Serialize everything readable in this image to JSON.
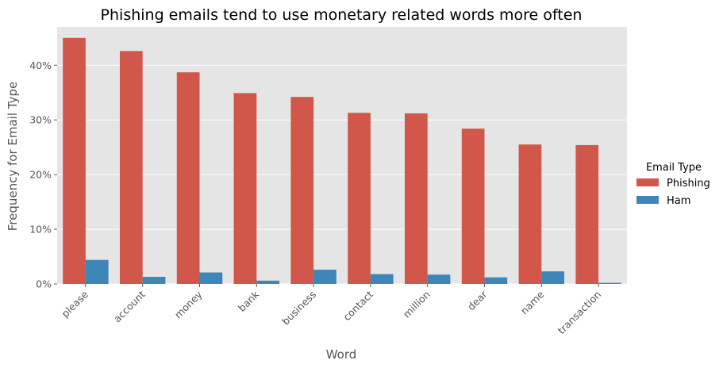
{
  "chart_data": {
    "type": "bar",
    "title": "Phishing emails tend to use monetary related words more often",
    "xlabel": "Word",
    "ylabel": "Frequency for Email Type",
    "categories": [
      "please",
      "account",
      "money",
      "bank",
      "business",
      "contact",
      "million",
      "dear",
      "name",
      "transaction"
    ],
    "series": [
      {
        "name": "Phishing",
        "color": "#d0574a",
        "values": [
          45.0,
          42.6,
          38.7,
          34.9,
          34.2,
          31.3,
          31.2,
          28.4,
          25.5,
          25.4
        ]
      },
      {
        "name": "Ham",
        "color": "#3f86b8",
        "values": [
          4.4,
          1.3,
          2.1,
          0.6,
          2.6,
          1.8,
          1.7,
          1.2,
          2.3,
          0.2
        ]
      }
    ],
    "ylim": [
      0,
      47
    ],
    "yticks": [
      0,
      10,
      20,
      30,
      40
    ],
    "ytick_labels": [
      "0%",
      "10%",
      "20%",
      "30%",
      "40%"
    ],
    "grid": true,
    "background": "#e5e5e5",
    "legend": {
      "title": "Email Type",
      "placement": "right"
    }
  }
}
